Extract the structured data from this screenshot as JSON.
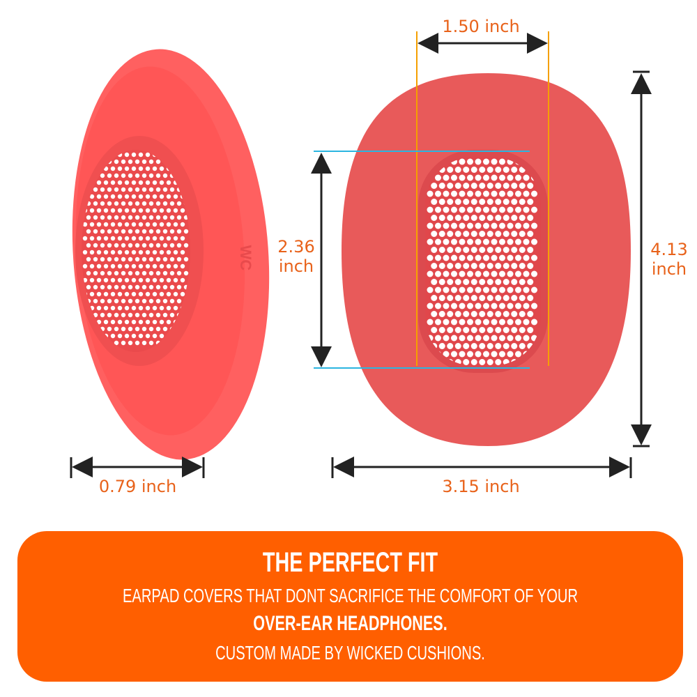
{
  "dimensions": {
    "thickness": "0.79 inch",
    "width": "3.15 inch",
    "height_line1": "4.13",
    "height_line2": "inch",
    "opening_width": "1.50 inch",
    "opening_height_line1": "2.36",
    "opening_height_line2": "inch"
  },
  "banner": {
    "title": "THE PERFECT FIT",
    "line1": "EARPAD COVERS THAT DONT SACRIFICE THE COMFORT OF YOUR",
    "line2": "OVER-EAR HEADPHONES.",
    "line3": "CUSTOM MADE BY WICKED CUSHIONS."
  },
  "logo_text": "WC",
  "colors": {
    "accent": "#ff5f00",
    "label": "#e8621a",
    "pad": "#e85a5a",
    "pad_left": "#ff5f5f",
    "guide_orange": "#f5a000",
    "guide_cyan": "#2bb5e0"
  }
}
